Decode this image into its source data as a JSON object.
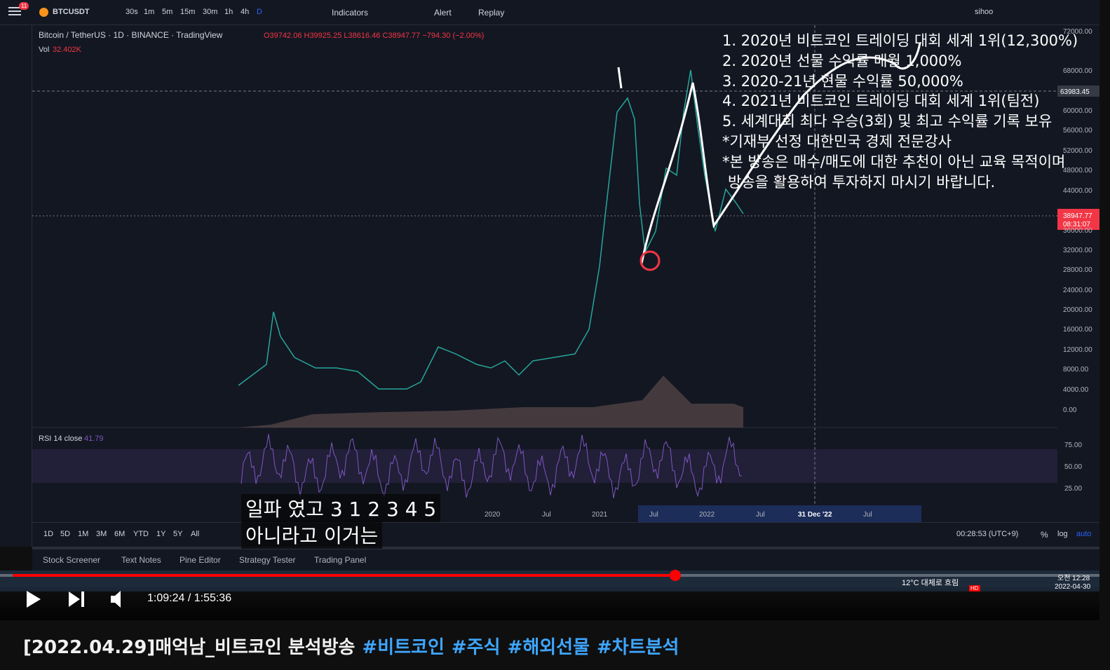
{
  "toolbar": {
    "badge": "11",
    "symbol": "BTCUSDT",
    "intervals": [
      "30s",
      "1m",
      "5m",
      "15m",
      "30m",
      "1h",
      "4h",
      "D"
    ],
    "indicators": "Indicators",
    "alert": "Alert",
    "replay": "Replay",
    "user": "sihoo"
  },
  "legend": {
    "title": "Bitcoin / TetherUS · 1D · BINANCE · TradingView",
    "open": "O39742.06",
    "high": "H39925.25",
    "low": "L38616.46",
    "close": "C38947.77",
    "change": "−794.30 (−2.00%)",
    "volume_label": "Vol",
    "volume": "32.402K",
    "rsi_label": "RSI 14 close",
    "rsi": "41.79"
  },
  "price_axis": {
    "labels": [
      "72000.00",
      "68000.00",
      "60000.00",
      "56000.00",
      "52000.00",
      "48000.00",
      "44000.00",
      "36000.00",
      "32000.00",
      "28000.00",
      "24000.00",
      "20000.00",
      "16000.00",
      "12000.00",
      "8000.00",
      "4000.00",
      "0.00"
    ],
    "crosshair_price": "63983.45",
    "last_price": "38947.77",
    "countdown": "08:31:07",
    "rsi_labels": [
      "75.00",
      "50.00",
      "25.00"
    ]
  },
  "time_axis": {
    "labels": [
      "2020",
      "Jul",
      "2021",
      "Jul",
      "2022",
      "Jul",
      "31 Dec '22",
      "Jul"
    ]
  },
  "range_bar": {
    "ranges": [
      "1D",
      "5D",
      "1M",
      "3M",
      "6M",
      "YTD",
      "1Y",
      "5Y",
      "All"
    ],
    "clock": "00:28:53 (UTC+9)",
    "percent": "%",
    "log": "log",
    "auto": "auto"
  },
  "bottom_tabs": [
    "Stock Screener",
    "Text Notes",
    "Pine Editor",
    "Strategy Tester",
    "Trading Panel"
  ],
  "overlay_text": [
    "1. 2020년 비트코인 트레이딩 대회 세계 1위(12,300%)",
    "2. 2020년 선물 수익률 매월 1,000%",
    "3. 2020-21년 현물 수익률 50,000%",
    "4. 2021년 비트코인 트레이딩 대회 세계 1위(팀전)",
    "5. 세계대회 최다 우승(3회) 및 최고 수익률 기록 보유",
    "*기재부 선정 대한민국 경제 전문강사",
    "*본 방송은 매수/매도에 대한 추천이 아닌 교육 목적이며",
    "방송을 활용하여 투자하지 마시기 바랍니다."
  ],
  "subtitles": [
    "일파 였고 3 1 2 3 4 5",
    "아니라고 이거는"
  ],
  "taskbar": {
    "weather": "12°C 대체로 흐림",
    "time": "오전 12:28",
    "date": "2022-04-30"
  },
  "player": {
    "time": "1:09:24 / 1:55:36",
    "quality": "HD"
  },
  "video_title": {
    "text": "[2022.04.29]매억남_비트코인 분석방송",
    "hashtags": [
      "#비트코인",
      "#주식",
      "#해외선물",
      "#차트분석"
    ]
  }
}
